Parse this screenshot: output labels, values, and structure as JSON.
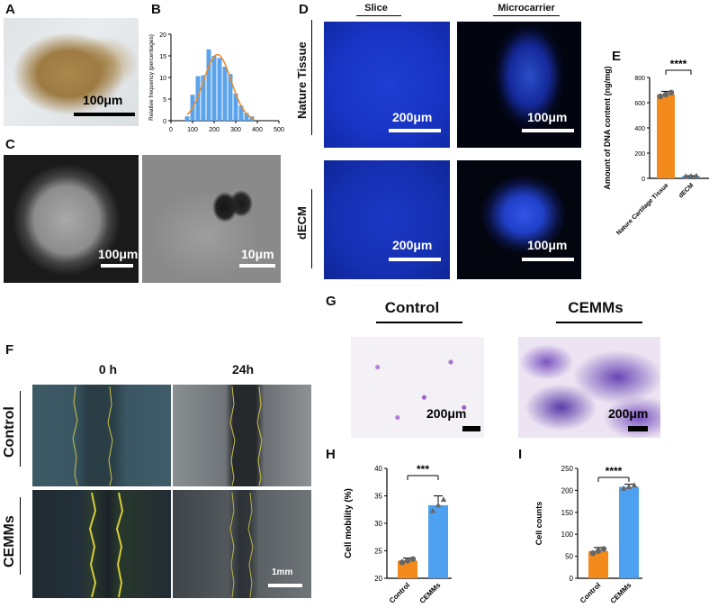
{
  "panels": {
    "A": "A",
    "B": "B",
    "C": "C",
    "D": "D",
    "E": "E",
    "F": "F",
    "G": "G",
    "H": "H",
    "I": "I"
  },
  "panel_a": {
    "scale": "100μm"
  },
  "panel_c": {
    "scale_left": "100μm",
    "scale_right": "10μm"
  },
  "panel_d": {
    "col_slice": "Slice",
    "col_microcarrier": "Microcarrier",
    "row_nature": "Nature Tissue",
    "row_decm": "dECM",
    "scales": [
      "200μm",
      "100μm",
      "200μm",
      "100μm"
    ]
  },
  "panel_f": {
    "col_0h": "0 h",
    "col_24h": "24h",
    "row_control": "Control",
    "row_cemms": "CEMMs",
    "scale": "1mm"
  },
  "panel_g": {
    "col_control": "Control",
    "col_cemms": "CEMMs",
    "scale_left": "200μm",
    "scale_right": "200μm"
  },
  "chart_data": [
    {
      "id": "B",
      "type": "bar",
      "ylabel": "Relative frequency (percentages)",
      "x": [
        75,
        100,
        125,
        150,
        175,
        200,
        225,
        250,
        275,
        300,
        325,
        350,
        375
      ],
      "values": [
        1.0,
        6.0,
        10.3,
        10.5,
        16.5,
        15.0,
        14.5,
        12.5,
        10.8,
        6.3,
        3.5,
        1.8,
        1.0
      ],
      "fit_curve": true,
      "xticks": [
        "0",
        "100",
        "200",
        "300",
        "400",
        "500"
      ],
      "xlim": [
        0,
        500
      ],
      "yticks": [
        "0",
        "5",
        "10",
        "15",
        "20"
      ],
      "ylim": [
        0,
        20
      ],
      "colors": {
        "bar": "#5ba3ea",
        "curve": "#f08a24"
      }
    },
    {
      "id": "E",
      "type": "bar",
      "ylabel": "Amount of DNA content (ng/mg)",
      "categories": [
        "Nature Cartilage Tissue",
        "dECM"
      ],
      "values": [
        665,
        18
      ],
      "errors": [
        25,
        3
      ],
      "yticks": [
        "0",
        "200",
        "400",
        "600",
        "800"
      ],
      "ylim": [
        0,
        800
      ],
      "significance": "****",
      "colors": [
        "#f28a1c",
        "#4da1f0"
      ]
    },
    {
      "id": "H",
      "type": "bar",
      "ylabel": "Cell mobility (%)",
      "categories": [
        "Control",
        "CEMMs"
      ],
      "values": [
        23.2,
        33.3
      ],
      "errors": [
        0.5,
        1.7
      ],
      "yticks": [
        "20",
        "25",
        "30",
        "35",
        "40"
      ],
      "ylim": [
        20,
        40
      ],
      "significance": "***",
      "colors": [
        "#f28a1c",
        "#4da1f0"
      ]
    },
    {
      "id": "I",
      "type": "bar",
      "ylabel": "Cell counts",
      "categories": [
        "Control",
        "CEMMs"
      ],
      "values": [
        62,
        208
      ],
      "errors": [
        8,
        6
      ],
      "yticks": [
        "0",
        "50",
        "100",
        "150",
        "200",
        "250"
      ],
      "ylim": [
        0,
        250
      ],
      "significance": "****",
      "colors": [
        "#f28a1c",
        "#4da1f0"
      ]
    }
  ]
}
